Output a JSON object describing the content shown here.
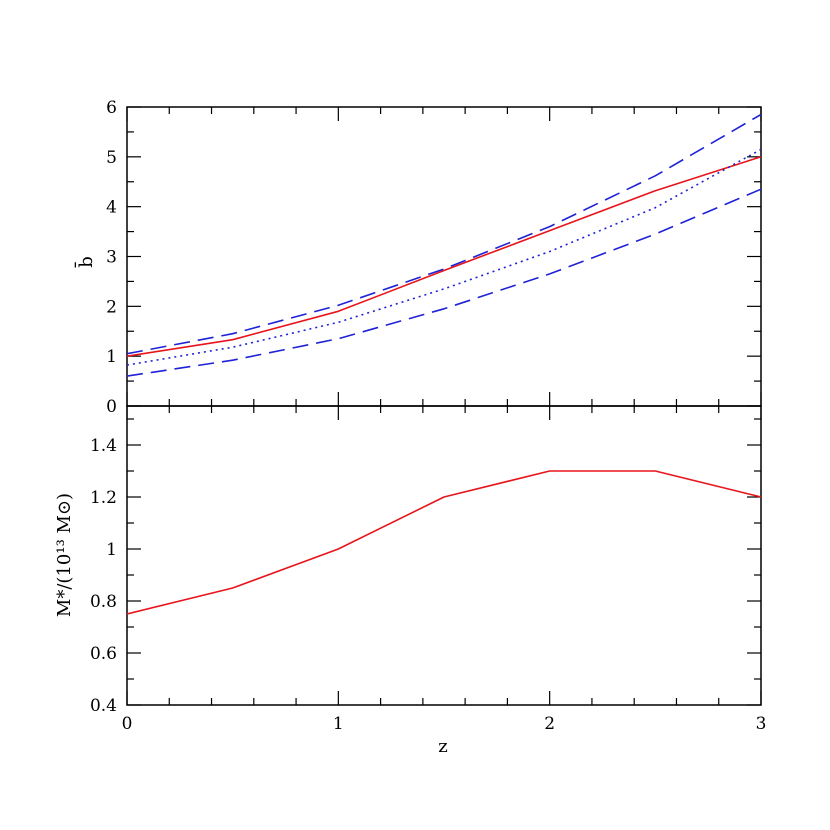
{
  "chart_data": [
    {
      "type": "line",
      "ylabel": "b̄",
      "xlabel": "",
      "xlim": [
        0,
        3
      ],
      "ylim": [
        0,
        6
      ],
      "x_ticks": [
        0,
        1,
        2,
        3
      ],
      "y_ticks": [
        0,
        1,
        2,
        3,
        4,
        5,
        6
      ],
      "y_tick_labels": [
        "0",
        "1",
        "2",
        "3",
        "4",
        "5",
        "6"
      ],
      "series": [
        {
          "style": "solid",
          "color": "#e8141b",
          "x": [
            0,
            0.5,
            1,
            1.5,
            2,
            2.5,
            3
          ],
          "y": [
            1.0,
            1.33,
            1.9,
            2.72,
            3.52,
            4.32,
            5.0
          ]
        },
        {
          "style": "dashed",
          "color": "#1f22d6",
          "x": [
            0,
            0.5,
            1,
            1.5,
            2,
            2.5,
            3
          ],
          "y": [
            1.05,
            1.45,
            2.02,
            2.75,
            3.6,
            4.62,
            5.85
          ]
        },
        {
          "style": "dotted",
          "color": "#1f22d6",
          "x": [
            0,
            0.5,
            1,
            1.5,
            2,
            2.5,
            3
          ],
          "y": [
            0.82,
            1.18,
            1.68,
            2.35,
            3.1,
            3.98,
            5.15
          ]
        },
        {
          "style": "dashed",
          "color": "#1f22d6",
          "x": [
            0,
            0.5,
            1,
            1.5,
            2,
            2.5,
            3
          ],
          "y": [
            0.6,
            0.92,
            1.35,
            1.95,
            2.65,
            3.45,
            4.35
          ]
        }
      ]
    },
    {
      "type": "line",
      "ylabel": "M*/(10¹³ M⊙)",
      "xlabel": "z",
      "xlim": [
        0,
        3
      ],
      "ylim": [
        0.4,
        1.55
      ],
      "x_ticks": [
        0,
        1,
        2,
        3
      ],
      "x_tick_labels": [
        "0",
        "1",
        "2",
        "3"
      ],
      "y_ticks": [
        0.4,
        0.6,
        0.8,
        1.0,
        1.2,
        1.4
      ],
      "y_tick_labels": [
        "0.4",
        "0.6",
        "0.8",
        "1",
        "1.2",
        "1.4"
      ],
      "series": [
        {
          "style": "solid",
          "color": "#e8141b",
          "x": [
            0,
            0.5,
            1,
            1.5,
            2,
            2.5,
            3
          ],
          "y": [
            0.75,
            0.85,
            1.0,
            1.2,
            1.3,
            1.3,
            1.2
          ]
        }
      ]
    }
  ]
}
